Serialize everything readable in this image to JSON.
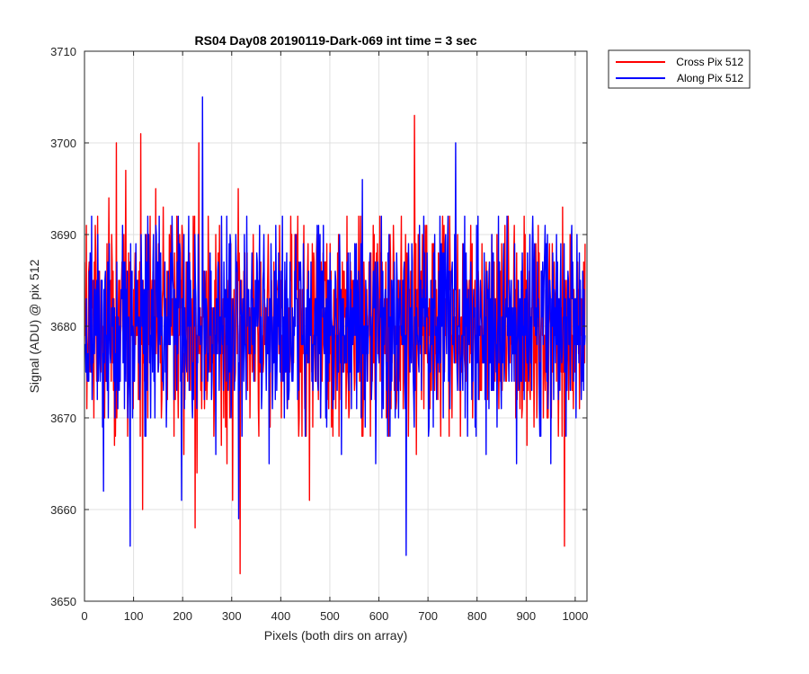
{
  "chart_data": {
    "type": "line",
    "title": "RS04 Day08 20190119-Dark-069 int time = 3 sec",
    "xlabel": "Pixels (both dirs on array)",
    "ylabel": "Signal (ADU) @ pix 512",
    "xlim": [
      0,
      1024
    ],
    "ylim": [
      3650,
      3710
    ],
    "xticks": [
      0,
      100,
      200,
      300,
      400,
      500,
      600,
      700,
      800,
      900,
      1000
    ],
    "yticks": [
      3650,
      3660,
      3670,
      3680,
      3690,
      3700,
      3710
    ],
    "grid": true,
    "legend_placement": "outside-top-right",
    "noise_center": 3680,
    "series": [
      {
        "name": "Cross Pix 512",
        "color": "#ff0000",
        "sigma": 5.2,
        "y": [
          3687,
          3691,
          3679,
          3675,
          3683,
          3670,
          3688,
          3692,
          3686,
          3679,
          3674,
          3681,
          3689,
          3694,
          3685,
          3676,
          3667,
          3700,
          3681,
          3674,
          3687,
          3690,
          3697,
          3668,
          3675,
          3683,
          3671,
          3688,
          3679,
          3686,
          3701,
          3660,
          3674,
          3690,
          3682,
          3692,
          3685,
          3677,
          3695,
          3681,
          3688,
          3670,
          3693,
          3678,
          3686,
          3679,
          3691,
          3683,
          3688,
          3675,
          3670,
          3686,
          3691,
          3666,
          3680,
          3674,
          3688,
          3679,
          3692,
          3658,
          3664,
          3700,
          3673,
          3683,
          3671,
          3686,
          3692,
          3675,
          3682,
          3668,
          3690,
          3677,
          3691,
          3667,
          3683,
          3676,
          3665,
          3684,
          3689,
          3661,
          3679,
          3687,
          3695,
          3653,
          3671,
          3686,
          3680,
          3673,
          3682,
          3677,
          3690,
          3674,
          3683,
          3668,
          3687,
          3679,
          3684,
          3676,
          3690,
          3669,
          3681,
          3687,
          3675,
          3684,
          3691,
          3670,
          3678,
          3685,
          3673,
          3682,
          3692,
          3675,
          3681,
          3689,
          3672,
          3684,
          3668,
          3691,
          3677,
          3686,
          3661,
          3683,
          3679,
          3674,
          3690,
          3685,
          3670,
          3678,
          3687,
          3673,
          3682,
          3689,
          3676,
          3684,
          3671,
          3688,
          3679,
          3674,
          3686,
          3681,
          3692,
          3670,
          3678,
          3685,
          3673,
          3689,
          3676,
          3683,
          3668,
          3687,
          3680,
          3674,
          3686,
          3679,
          3691,
          3672,
          3684,
          3678,
          3688,
          3675,
          3683,
          3670,
          3681,
          3690,
          3676,
          3687,
          3673,
          3685,
          3679,
          3692,
          3671,
          3682,
          3688,
          3674,
          3686,
          3678,
          3703,
          3666,
          3690,
          3679,
          3684,
          3671,
          3688,
          3676,
          3683,
          3673,
          3689,
          3680,
          3677,
          3686,
          3668,
          3692,
          3675,
          3683,
          3679,
          3687,
          3670,
          3684,
          3676,
          3690,
          3673,
          3681,
          3688,
          3675,
          3685,
          3678,
          3691,
          3670,
          3683,
          3679,
          3686,
          3673,
          3689,
          3677,
          3684,
          3672,
          3687,
          3680,
          3675,
          3682,
          3690,
          3671,
          3686,
          3678,
          3683,
          3674,
          3692,
          3676,
          3681,
          3688,
          3670,
          3685,
          3679,
          3684,
          3673,
          3690,
          3667,
          3683,
          3678,
          3688,
          3675,
          3682,
          3691,
          3672,
          3686,
          3679,
          3684,
          3676,
          3689,
          3670,
          3683,
          3680,
          3687,
          3674,
          3681,
          3693,
          3656,
          3685,
          3678,
          3690,
          3673,
          3684,
          3679,
          3687,
          3671,
          3683,
          3676,
          3689
        ]
      },
      {
        "name": "Along Pix 512",
        "color": "#0000ff",
        "sigma": 5.2,
        "y": [
          3678,
          3683,
          3674,
          3688,
          3672,
          3685,
          3679,
          3690,
          3676,
          3681,
          3662,
          3686,
          3673,
          3689,
          3677,
          3683,
          3670,
          3687,
          3675,
          3682,
          3691,
          3671,
          3684,
          3678,
          3656,
          3686,
          3674,
          3689,
          3680,
          3672,
          3685,
          3677,
          3690,
          3673,
          3683,
          3679,
          3687,
          3670,
          3684,
          3676,
          3688,
          3674,
          3681,
          3669,
          3686,
          3678,
          3692,
          3672,
          3683,
          3677,
          3689,
          3661,
          3684,
          3679,
          3687,
          3673,
          3682,
          3676,
          3690,
          3671,
          3685,
          3680,
          3705,
          3672,
          3683,
          3677,
          3688,
          3674,
          3681,
          3666,
          3686,
          3679,
          3692,
          3673,
          3684,
          3678,
          3689,
          3670,
          3683,
          3676,
          3687,
          3659,
          3685,
          3679,
          3690,
          3672,
          3682,
          3677,
          3688,
          3674,
          3684,
          3680,
          3691,
          3671,
          3686,
          3678,
          3683,
          3665,
          3689,
          3676,
          3684,
          3673,
          3688,
          3679,
          3692,
          3670,
          3683,
          3677,
          3687,
          3674,
          3681,
          3690,
          3672,
          3685,
          3678,
          3689,
          3668,
          3684,
          3676,
          3687,
          3673,
          3682,
          3679,
          3691,
          3670,
          3686,
          3677,
          3683,
          3674,
          3688,
          3680,
          3672,
          3685,
          3679,
          3690,
          3666,
          3683,
          3676,
          3687,
          3673,
          3684,
          3678,
          3689,
          3671,
          3686,
          3680,
          3696,
          3672,
          3683,
          3677,
          3688,
          3674,
          3682,
          3665,
          3687,
          3679,
          3692,
          3671,
          3684,
          3676,
          3690,
          3673,
          3685,
          3680,
          3688,
          3670,
          3683,
          3678,
          3687,
          3655,
          3686,
          3675,
          3689,
          3672,
          3684,
          3679,
          3691,
          3673,
          3682,
          3677,
          3688,
          3669,
          3685,
          3679,
          3690,
          3672,
          3683,
          3676,
          3688,
          3674,
          3681,
          3692,
          3671,
          3686,
          3678,
          3700,
          3673,
          3684,
          3677,
          3689,
          3670,
          3683,
          3679,
          3687,
          3674,
          3682,
          3691,
          3672,
          3685,
          3678,
          3688,
          3666,
          3684,
          3676,
          3690,
          3673,
          3682,
          3679,
          3687,
          3671,
          3686,
          3680,
          3692,
          3674,
          3683,
          3677,
          3689,
          3665,
          3685,
          3679,
          3688,
          3672,
          3684,
          3676,
          3690,
          3673,
          3683,
          3679,
          3687,
          3671,
          3686,
          3678,
          3691,
          3674,
          3682,
          3665,
          3688,
          3679,
          3690,
          3672,
          3684,
          3677,
          3689,
          3668,
          3686,
          3680,
          3691,
          3674,
          3683,
          3678,
          3688,
          3672,
          3685,
          3679
        ]
      }
    ]
  }
}
